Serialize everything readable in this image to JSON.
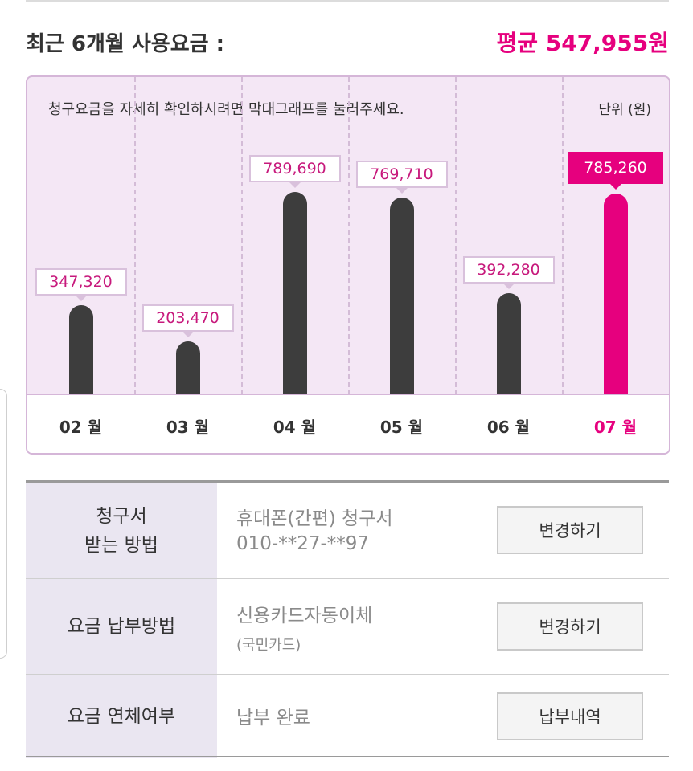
{
  "header": {
    "title": "최근 6개월 사용요금 :",
    "average": "평균 547,955원"
  },
  "chart_hint": "청구요금을 자세히 확인하시려면 막대그래프를 눌러주세요.",
  "chart_unit": "단위 (원)",
  "colors": {
    "accent": "#e6007e",
    "bar": "#3d3d3d",
    "chart_bg": "#f4e7f5"
  },
  "chart_data": {
    "type": "bar",
    "categories": [
      "02 월",
      "03 월",
      "04 월",
      "05 월",
      "06 월",
      "07 월"
    ],
    "values": [
      347320,
      203470,
      789690,
      769710,
      392280,
      785260
    ],
    "value_labels": [
      "347,320",
      "203,470",
      "789,690",
      "769,710",
      "392,280",
      "785,260"
    ],
    "selected_index": 5,
    "ylabel": "단위 (원)"
  },
  "info": {
    "rows": [
      {
        "label_line1": "청구서",
        "label_line2": "받는 방법",
        "value": "휴대폰(간편) 청구서",
        "sub": "010-**27-**97",
        "button": "변경하기"
      },
      {
        "label": "요금 납부방법",
        "value": "신용카드자동이체",
        "sub": "(국민카드)",
        "button": "변경하기"
      },
      {
        "label": "요금 연체여부",
        "value": "납부 완료",
        "button": "납부내역"
      }
    ]
  }
}
